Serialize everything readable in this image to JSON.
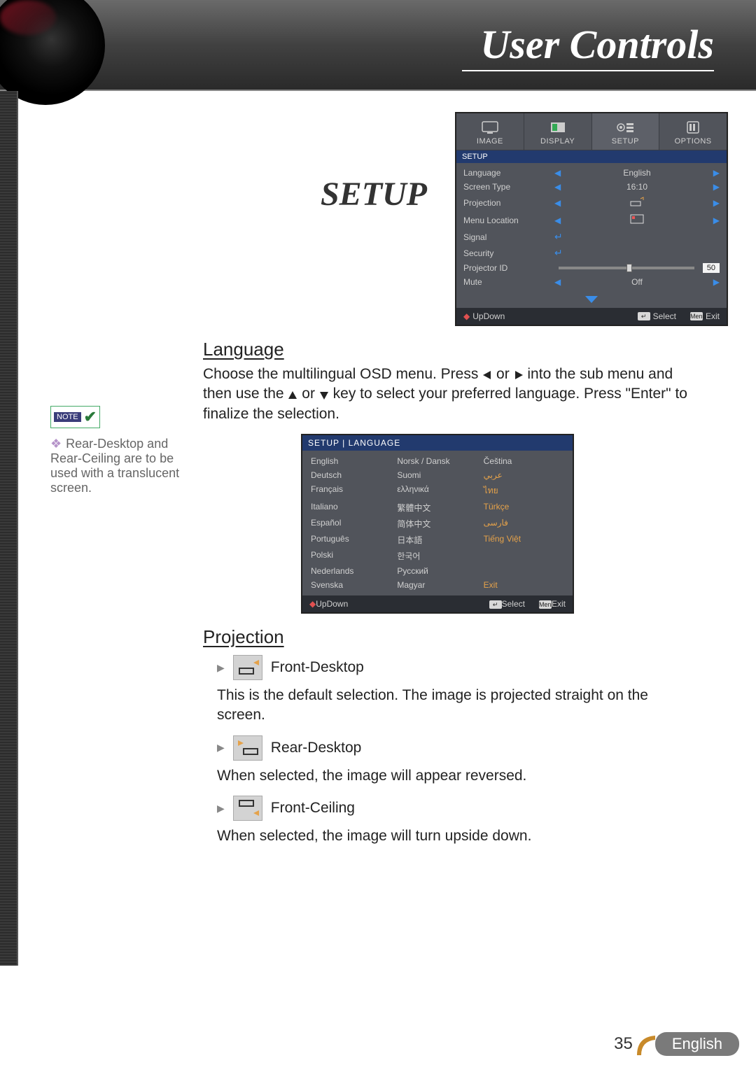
{
  "header": {
    "title": "User Controls"
  },
  "section_title": "SETUP",
  "osd": {
    "tabs": [
      {
        "label": "IMAGE"
      },
      {
        "label": "DISPLAY"
      },
      {
        "label": "SETUP"
      },
      {
        "label": "OPTIONS"
      }
    ],
    "active_tab_index": 2,
    "subhead": "SETUP",
    "rows": [
      {
        "label": "Language",
        "value": "English",
        "kind": "lr"
      },
      {
        "label": "Screen Type",
        "value": "16:10",
        "kind": "lr"
      },
      {
        "label": "Projection",
        "value": "proj-icon",
        "kind": "lr-icon"
      },
      {
        "label": "Menu Location",
        "value": "loc-icon",
        "kind": "lr-icon"
      },
      {
        "label": "Signal",
        "kind": "enter"
      },
      {
        "label": "Security",
        "kind": "enter"
      },
      {
        "label": "Projector ID",
        "value": "50",
        "kind": "slider",
        "slider_pos_pct": 50
      },
      {
        "label": "Mute",
        "value": "Off",
        "kind": "lr"
      }
    ],
    "footer": {
      "updown": "UpDown",
      "select": "Select",
      "exit": "Exit",
      "menu_key": "Menu"
    },
    "colors": {
      "panel_bg": "#51545b",
      "sub_bg": "#223a6e",
      "footer_bg": "#2a2d33",
      "arrow": "#3a8de8"
    }
  },
  "language_section": {
    "heading": "Language",
    "body_pre": "Choose the multilingual OSD menu. Press ",
    "body_mid1": " or ",
    "body_mid2": " into the sub menu and then use the ",
    "body_mid3": " or ",
    "body_mid4": " key to select your preferred language. Press \"Enter\" to finalize the selection."
  },
  "note": {
    "badge": "NOTE",
    "text": "Rear-Desktop and Rear-Ceiling are to be used with a translucent screen."
  },
  "lang_panel": {
    "head": "SETUP | LANGUAGE",
    "rows": [
      [
        "English",
        "Norsk / Dansk",
        "Čeština"
      ],
      [
        "Deutsch",
        "Suomi",
        "عربي"
      ],
      [
        "Français",
        "ελληνικά",
        "ไทย"
      ],
      [
        "Italiano",
        "繁體中文",
        "Türkçe"
      ],
      [
        "Español",
        "简体中文",
        "فارسی"
      ],
      [
        "Português",
        "日本語",
        "Tiếng Việt"
      ],
      [
        "Polski",
        "한국어",
        ""
      ],
      [
        "Nederlands",
        "Русский",
        ""
      ],
      [
        "Svenska",
        "Magyar",
        "Exit"
      ]
    ],
    "highlight_col3_rows": [
      1,
      2,
      3,
      4,
      5
    ],
    "footer": {
      "updown": "UpDown",
      "select": "Select",
      "exit": "Exit",
      "menu_key": "Menu"
    }
  },
  "projection_section": {
    "heading": "Projection",
    "items": [
      {
        "name": "Front-Desktop",
        "body": "This is the default selection. The image is projected straight on the screen."
      },
      {
        "name": "Rear-Desktop",
        "body": "When selected, the image will appear reversed."
      },
      {
        "name": "Front-Ceiling",
        "body": "When selected, the image will turn upside down."
      }
    ]
  },
  "footer": {
    "page": "35",
    "lang": "English",
    "accent": "#c88a2a"
  }
}
